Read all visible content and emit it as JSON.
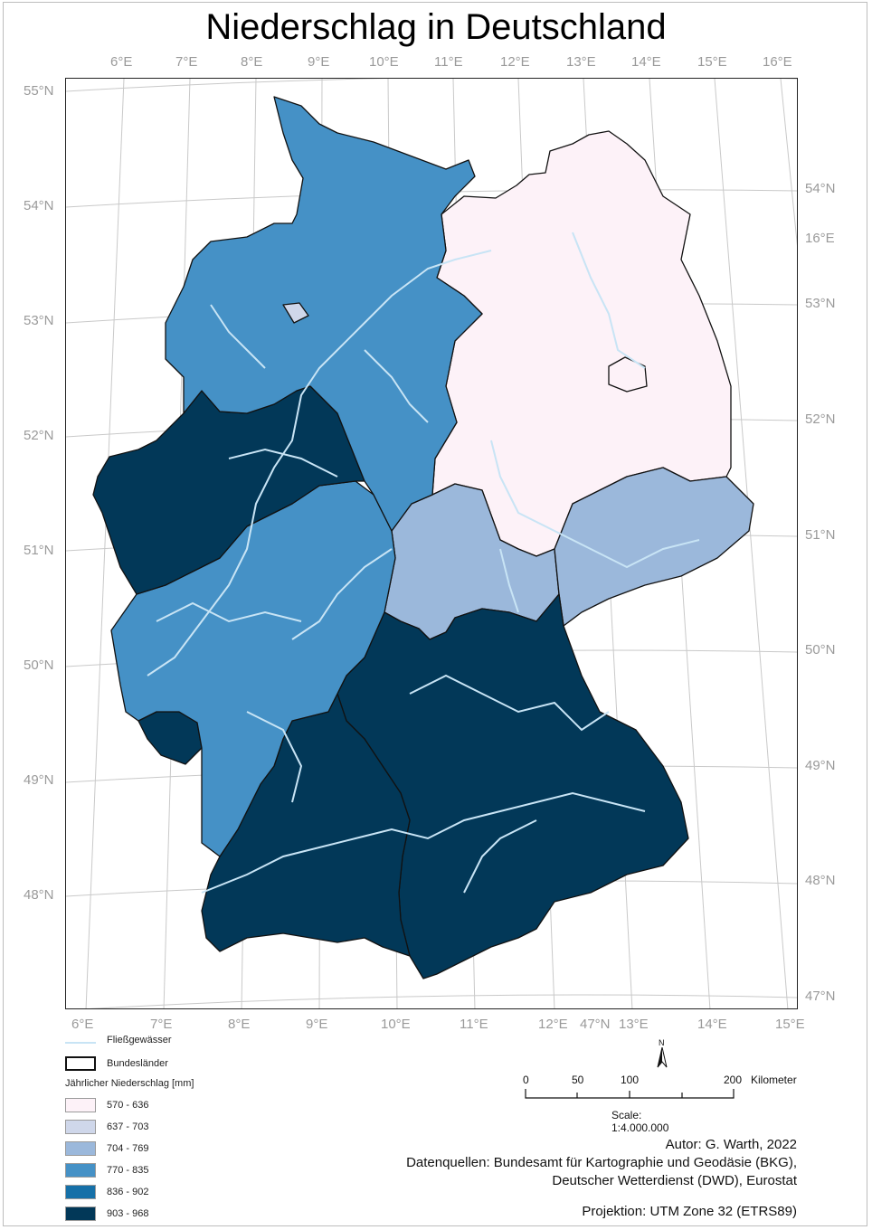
{
  "title": "Niederschlag in Deutschland",
  "top_lon_labels": [
    "6°E",
    "7°E",
    "8°E",
    "9°E",
    "10°E",
    "11°E",
    "12°E",
    "13°E",
    "14°E",
    "15°E",
    "16°E"
  ],
  "bottom_lon_labels": [
    "6°E",
    "7°E",
    "8°E",
    "9°E",
    "10°E",
    "11°E",
    "12°E",
    "47°N",
    "13°E",
    "14°E",
    "15°E"
  ],
  "left_lat_labels": [
    "55°N",
    "54°N",
    "53°N",
    "52°N",
    "51°N",
    "50°N",
    "49°N",
    "48°N"
  ],
  "right_lat_labels": [
    "54°N",
    "16°E",
    "53°N",
    "52°N",
    "51°N",
    "50°N",
    "49°N",
    "48°N",
    "47°N"
  ],
  "legend": {
    "rivers_label": "Fließgewässer",
    "states_label": "Bundesländer",
    "classes_title": "Jährlicher Niederschlag [mm]",
    "classes": [
      {
        "label": "570 - 636",
        "color": "#fdf2f8"
      },
      {
        "label": "637 - 703",
        "color": "#cfd7ea"
      },
      {
        "label": "704 - 769",
        "color": "#9bb8db"
      },
      {
        "label": "770 - 835",
        "color": "#4591c6"
      },
      {
        "label": "836 - 902",
        "color": "#1570a8"
      },
      {
        "label": "903 - 968",
        "color": "#023858"
      }
    ],
    "river_color": "#c8e4f5"
  },
  "scale_bar": {
    "north": "N",
    "ticks": [
      "0",
      "50",
      "100",
      "200"
    ],
    "unit": "Kilometer",
    "ratio": "Scale: 1:4.000.000"
  },
  "credits": {
    "author": "Autor: G. Warth, 2022",
    "sources_1": "Datenquellen: Bundesamt für Kartographie und Geodäsie (BKG),",
    "sources_2": "Deutscher Wetterdienst (DWD), Eurostat",
    "projection": "Projektion: UTM Zone 32 (ETRS89)"
  }
}
